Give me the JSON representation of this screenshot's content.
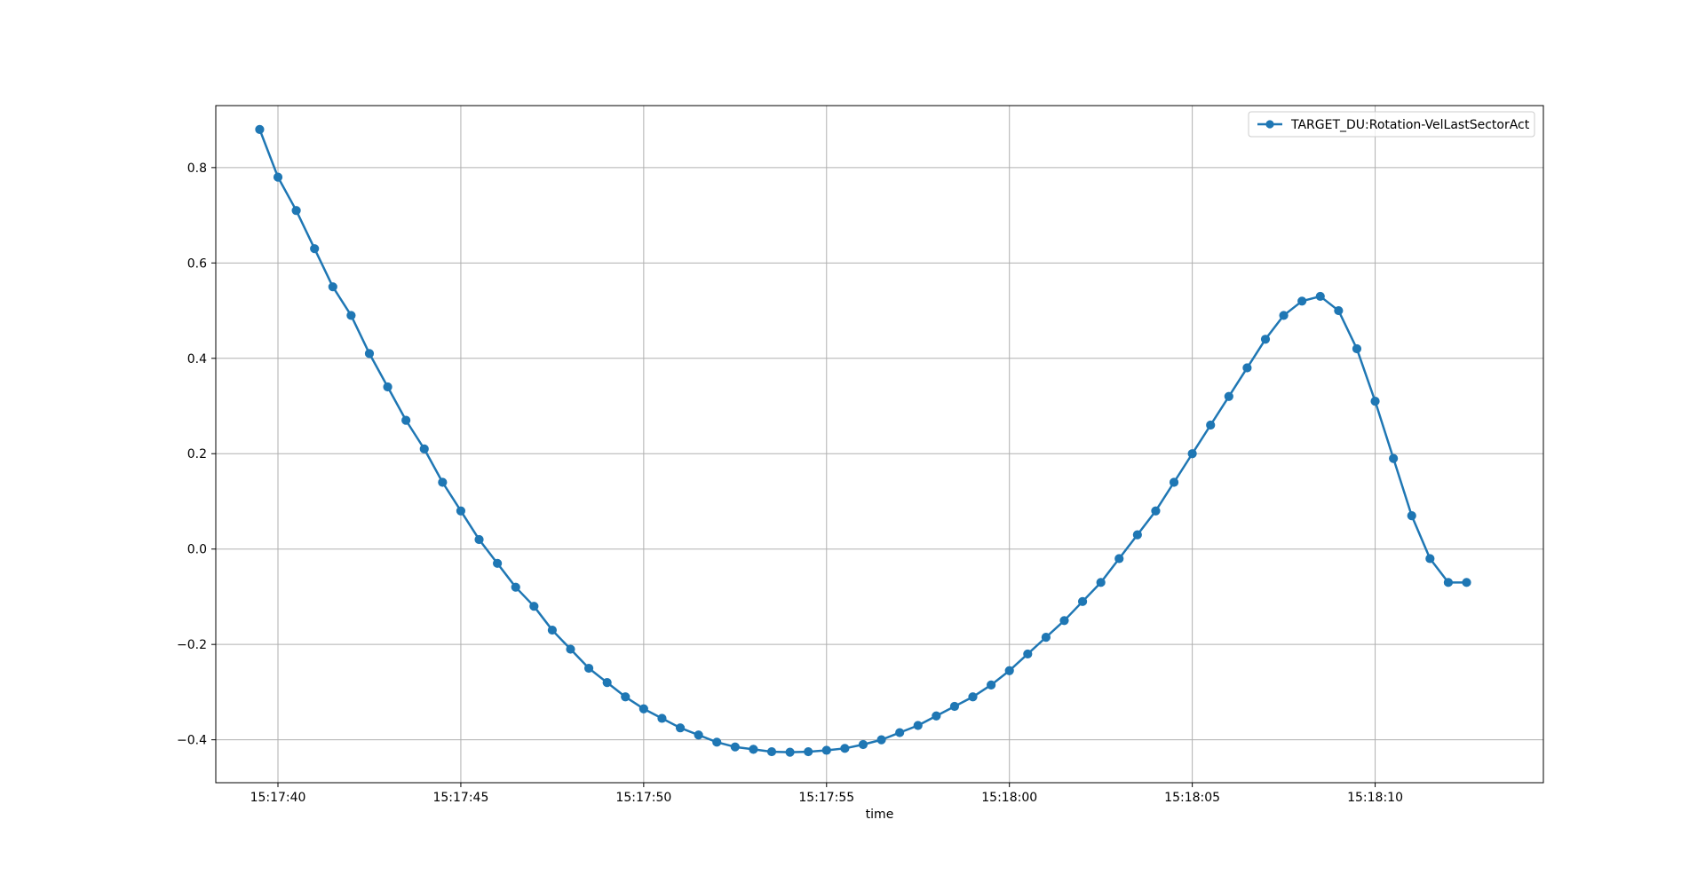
{
  "chart_data": {
    "type": "line",
    "xlabel": "time",
    "ylabel": "",
    "title": "",
    "x_tick_labels": [
      "15:17:40",
      "15:17:45",
      "15:17:50",
      "15:17:55",
      "15:18:00",
      "15:18:05",
      "15:18:10"
    ],
    "x_tick_values": [
      40,
      45,
      50,
      55,
      60,
      65,
      70
    ],
    "y_ticks": [
      -0.4,
      -0.2,
      0.0,
      0.2,
      0.4,
      0.6,
      0.8
    ],
    "y_tick_labels": [
      "−0.4",
      "−0.2",
      "0.0",
      "0.2",
      "0.4",
      "0.6",
      "0.8"
    ],
    "xlim": [
      38.3,
      74.6
    ],
    "ylim": [
      -0.49,
      0.93
    ],
    "grid": true,
    "legend_position": "top-right",
    "series": [
      {
        "name": "TARGET_DU:Rotation-VelLastSectorAct",
        "color": "#1f77b4",
        "marker": "circle",
        "x": [
          39.5,
          40.0,
          40.5,
          41.0,
          41.5,
          42.0,
          42.5,
          43.0,
          43.5,
          44.0,
          44.5,
          45.0,
          45.5,
          46.0,
          46.5,
          47.0,
          47.5,
          48.0,
          48.5,
          49.0,
          49.5,
          50.0,
          50.5,
          51.0,
          51.5,
          52.0,
          52.5,
          53.0,
          53.5,
          54.0,
          54.5,
          55.0,
          55.5,
          56.0,
          56.5,
          57.0,
          57.5,
          58.0,
          58.5,
          59.0,
          59.5,
          60.0,
          60.5,
          61.0,
          61.5,
          62.0,
          62.5,
          63.0,
          63.5,
          64.0,
          64.5,
          65.0,
          65.5,
          66.0,
          66.5,
          67.0,
          67.5,
          68.0,
          68.5,
          69.0,
          69.5,
          70.0,
          70.5,
          71.0,
          71.5,
          72.0,
          72.5
        ],
        "y": [
          0.88,
          0.78,
          0.71,
          0.63,
          0.55,
          0.49,
          0.41,
          0.34,
          0.27,
          0.21,
          0.14,
          0.08,
          0.02,
          -0.03,
          -0.08,
          -0.12,
          -0.17,
          -0.21,
          -0.25,
          -0.28,
          -0.31,
          -0.335,
          -0.355,
          -0.375,
          -0.39,
          -0.405,
          -0.415,
          -0.42,
          -0.425,
          -0.426,
          -0.425,
          -0.422,
          -0.418,
          -0.41,
          -0.4,
          -0.385,
          -0.37,
          -0.35,
          -0.33,
          -0.31,
          -0.285,
          -0.255,
          -0.22,
          -0.185,
          -0.15,
          -0.11,
          -0.07,
          -0.02,
          0.03,
          0.08,
          0.14,
          0.2,
          0.26,
          0.32,
          0.38,
          0.44,
          0.49,
          0.52,
          0.53,
          0.5,
          0.42,
          0.31,
          0.19,
          0.07,
          -0.02,
          -0.07,
          -0.07
        ]
      }
    ]
  }
}
